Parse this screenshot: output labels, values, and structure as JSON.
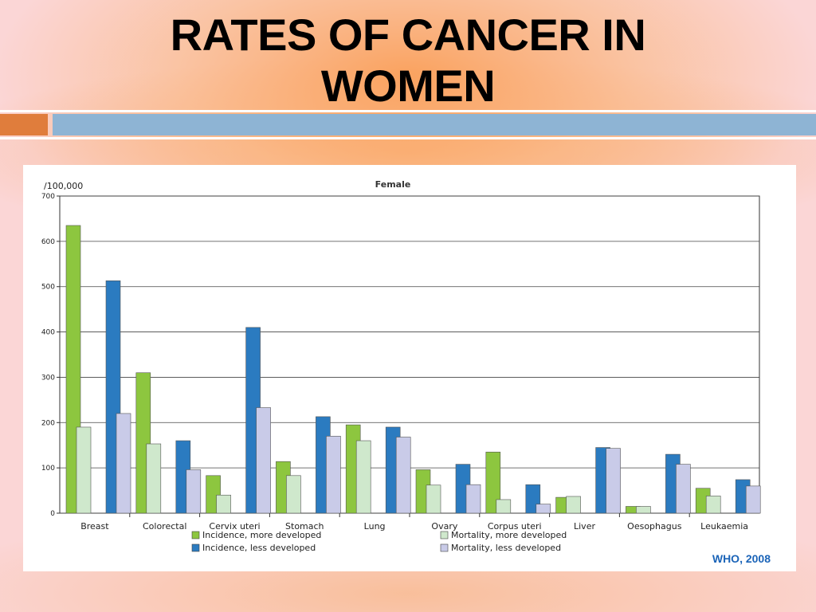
{
  "slide": {
    "title_line1": "RATES OF CANCER IN",
    "title_line2": "WOMEN",
    "source": "WHO, 2008"
  },
  "chart_data": {
    "type": "bar",
    "title": "Female",
    "ylabel": "/100,000",
    "ylim": [
      0,
      700
    ],
    "yticks": [
      0,
      100,
      200,
      300,
      400,
      500,
      600,
      700
    ],
    "grid": true,
    "legend_position": "bottom",
    "categories": [
      "Breast",
      "Colorectal",
      "Cervix uteri",
      "Stomach",
      "Lung",
      "Ovary",
      "Corpus uteri",
      "Liver",
      "Oesophagus",
      "Leukaemia"
    ],
    "series": [
      {
        "name": "Incidence, more developed",
        "color": "#8dc63f",
        "values": [
          635,
          310,
          83,
          114,
          195,
          96,
          135,
          35,
          15,
          55
        ]
      },
      {
        "name": "Mortality, more developed",
        "color": "#cfe8cc",
        "values": [
          190,
          153,
          40,
          83,
          160,
          62,
          30,
          37,
          15,
          38
        ]
      },
      {
        "name": "Incidence, less developed",
        "color": "#2b7bc0",
        "values": [
          513,
          160,
          410,
          213,
          190,
          108,
          63,
          145,
          130,
          74
        ]
      },
      {
        "name": "Mortality, less developed",
        "color": "#c9cbe8",
        "values": [
          220,
          96,
          233,
          170,
          168,
          63,
          20,
          143,
          108,
          60
        ]
      }
    ]
  }
}
